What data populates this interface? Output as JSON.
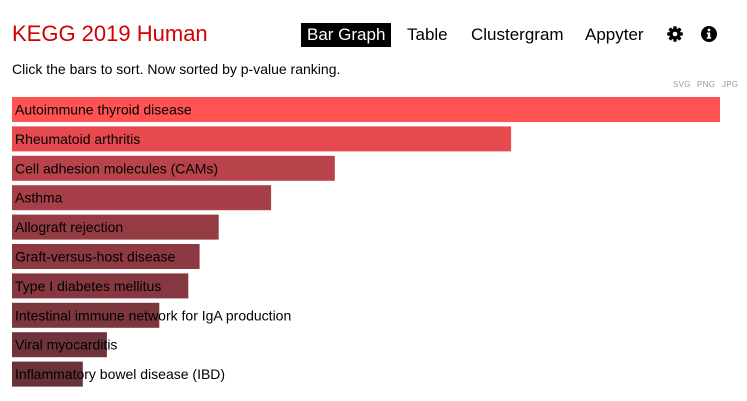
{
  "header": {
    "title": "KEGG 2019 Human",
    "title_color": "#d40000",
    "nav": {
      "bar_graph": "Bar Graph",
      "table": "Table",
      "clustergram": "Clustergram",
      "appyter": "Appyter",
      "active": "Bar Graph"
    },
    "icons": {
      "settings": "gear-icon",
      "info": "info-icon"
    }
  },
  "subtitle": "Click the bars to sort. Now sorted by p-value ranking.",
  "export": {
    "svg": "SVG",
    "png": "PNG",
    "jpg": "JPG"
  },
  "chart_data": {
    "type": "bar",
    "orientation": "horizontal",
    "sorted_by": "p-value ranking",
    "categories": [
      "Autoimmune thyroid disease",
      "Rheumatoid arthritis",
      "Cell adhesion molecules (CAMs)",
      "Asthma",
      "Allograft rejection",
      "Graft-versus-host disease",
      "Type I diabetes mellitus",
      "Intestinal immune network for IgA production",
      "Viral myocarditis",
      "Inflammatory bowel disease (IBD)"
    ],
    "values": [
      1.0,
      0.705,
      0.456,
      0.366,
      0.292,
      0.265,
      0.249,
      0.208,
      0.134,
      0.1
    ],
    "colors": [
      "#ff5252",
      "#e64a4f",
      "#b9434a",
      "#a63f47",
      "#953b44",
      "#8c3942",
      "#853840",
      "#7b363e",
      "#6e333b",
      "#693239"
    ]
  }
}
